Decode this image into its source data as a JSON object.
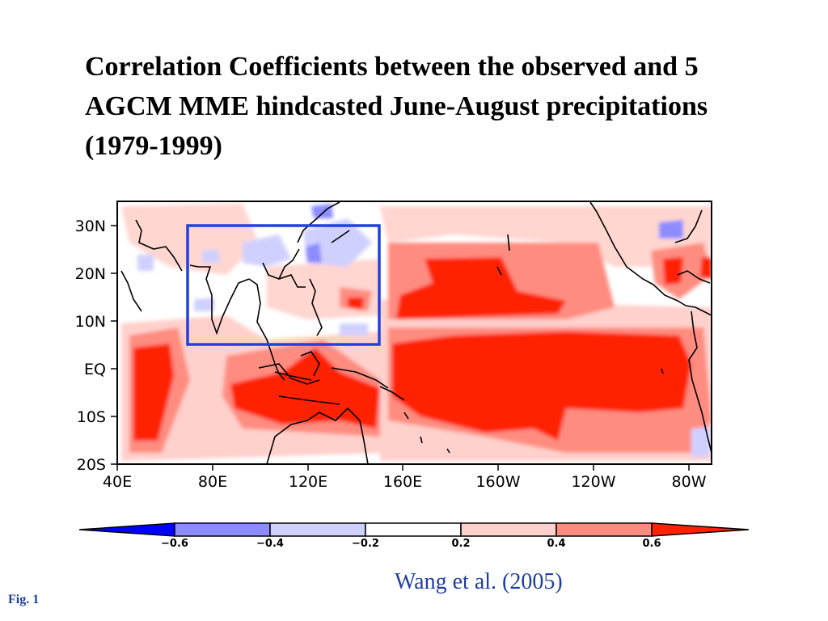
{
  "title": "Correlation Coefficients between the observed and 5 AGCM MME hindcasted June-August precipitations (1979-1999)",
  "map": {
    "lat_labels": [
      "30N",
      "20N",
      "10N",
      "EQ",
      "10S",
      "20S"
    ],
    "lon_labels": [
      "40E",
      "80E",
      "120E",
      "160E",
      "160W",
      "120W",
      "80W"
    ],
    "highlight_box": {
      "lon_range": [
        "70E",
        "150E"
      ],
      "lat_range": [
        "5N",
        "30N"
      ],
      "color": "#2040e0"
    }
  },
  "colorbar": {
    "ticks": [
      "−0.6",
      "−0.4",
      "−0.2",
      "0.2",
      "0.4",
      "0.6"
    ],
    "colors": [
      "#0000ff",
      "#8c8cff",
      "#d0d0ff",
      "#ffffff",
      "#ffd0cc",
      "#ff8c80",
      "#ff2200"
    ]
  },
  "credit": "Wang et al. (2005)",
  "fig_label": "Fig. 1"
}
